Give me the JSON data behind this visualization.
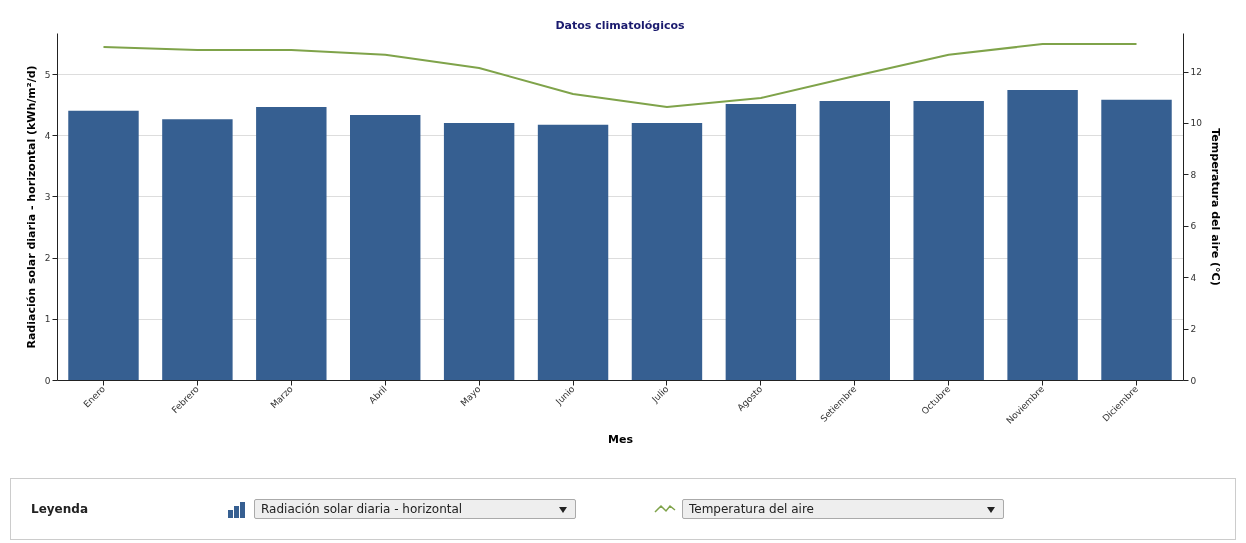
{
  "chart_data": {
    "type": "bar",
    "title": "Datos climatológicos",
    "xlabel": "Mes",
    "ylabel": "Radiación solar diaria - horizontal (kWh/m²/d)",
    "y2label": "Temperatura del aire (°C)",
    "legend_title": "Leyenda",
    "legend": "bottom",
    "grid": "y",
    "categories": [
      "Enero",
      "Febrero",
      "Marzo",
      "Abril",
      "Mayo",
      "Junio",
      "Julio",
      "Agosto",
      "Setiembre",
      "Octubre",
      "Noviembre",
      "Diciembre"
    ],
    "series": [
      {
        "name": "Radiación solar diaria - horizontal",
        "color": "#365f91",
        "values": [
          4.4,
          4.26,
          4.46,
          4.33,
          4.2,
          4.17,
          4.2,
          4.51,
          4.56,
          4.56,
          4.74,
          4.58
        ]
      },
      {
        "name": "Temperatura del aire",
        "type": "line",
        "axis": "y2",
        "color": "#7fa34a",
        "values": [
          12.96,
          12.84,
          12.84,
          12.65,
          12.14,
          11.13,
          10.62,
          10.97,
          11.83,
          12.65,
          13.07,
          13.07
        ]
      }
    ],
    "ylim": [
      0,
      5.67
    ],
    "yticks": [
      0,
      1,
      2,
      3,
      4,
      5
    ],
    "y2lim": [
      0,
      13.5
    ],
    "y2ticks": [
      0,
      2,
      4,
      6,
      8,
      10,
      12
    ]
  }
}
